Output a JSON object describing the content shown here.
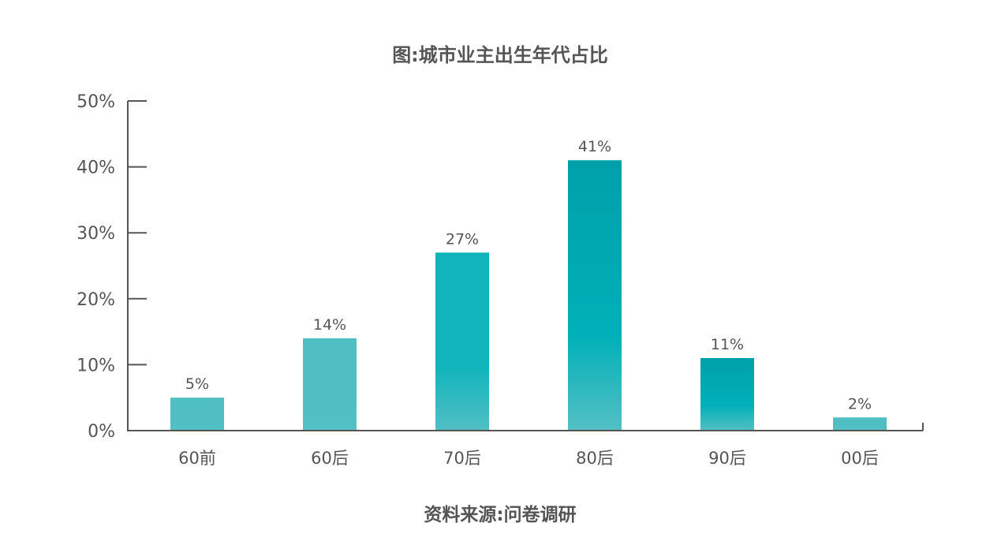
{
  "chart_data": {
    "type": "bar",
    "title": "图:城市业主出生年代占比",
    "source": "资料来源:问卷调研",
    "categories": [
      "60前",
      "60后",
      "70后",
      "80后",
      "90后",
      "00后"
    ],
    "values": [
      5,
      14,
      27,
      41,
      11,
      2
    ],
    "data_labels": [
      "5%",
      "14%",
      "27%",
      "41%",
      "11%",
      "2%"
    ],
    "yticks": [
      "0%",
      "10%",
      "20%",
      "30%",
      "40%",
      "50%"
    ],
    "ylim": [
      0,
      50
    ],
    "grid": false,
    "bar_colors": [
      [
        "#4fbfc4",
        "#52c0c4"
      ],
      [
        "#4fbfc4",
        "#52c0c4"
      ],
      [
        "#12b4bc",
        "#50bfc4"
      ],
      [
        "#00a0aa",
        "#52c0c4"
      ],
      [
        "#00a0aa",
        "#4fbfc4"
      ],
      [
        "#4fbfc4",
        "#52c0c4"
      ]
    ]
  }
}
